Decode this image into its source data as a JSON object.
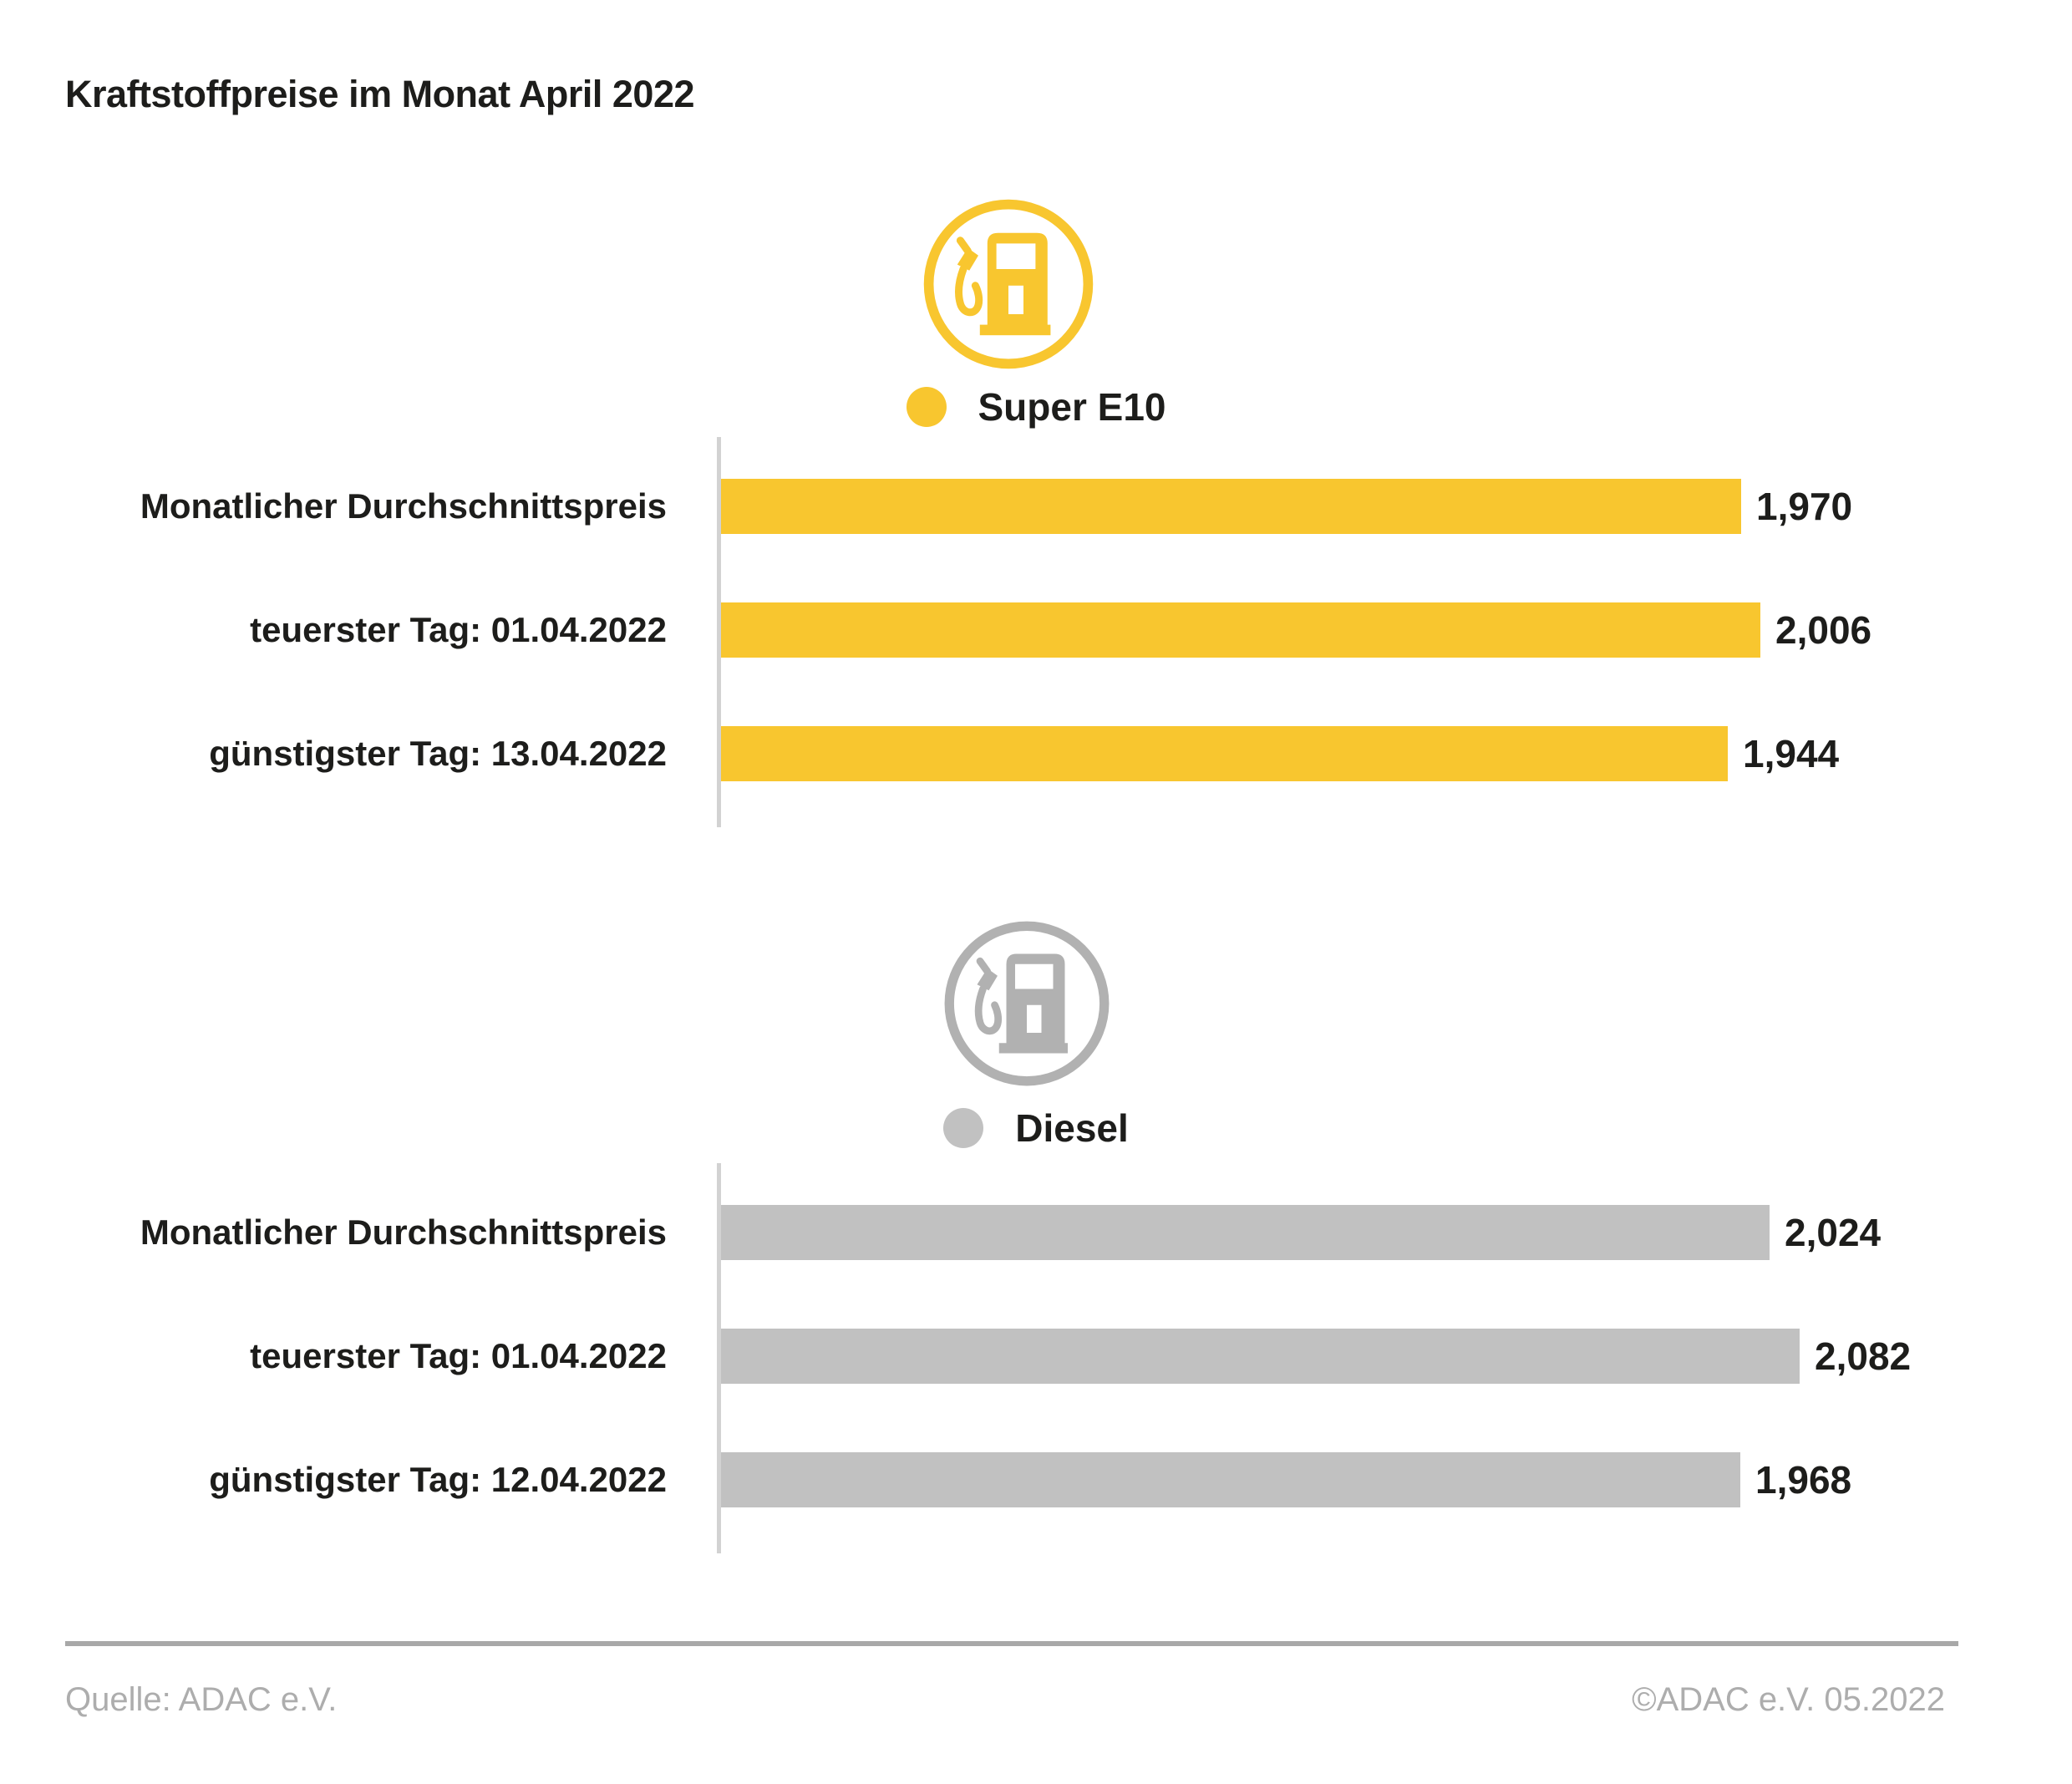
{
  "page": {
    "title": "Kraftstoffpreise im Monat April 2022"
  },
  "colors": {
    "super_e10": "#F8C62F",
    "diesel_bar": "#C1C1C1",
    "diesel_icon": "#B1B1B1",
    "axis_line": "#D2D2D2",
    "heading_text": "#1D1D1B",
    "footer_text": "#ADADAD",
    "divider": "#A8A8A8"
  },
  "footer": {
    "source": "Quelle: ADAC e.V.",
    "copyright": "©ADAC e.V. 05.2022"
  },
  "chart_data": [
    {
      "type": "bar",
      "orientation": "horizontal",
      "title": "Super E10",
      "legend": {
        "label": "Super E10",
        "color": "#F8C62F",
        "icon": "fuel-pump-icon",
        "position": "top-center"
      },
      "categories": [
        "Monatlicher Durchschnittspreis",
        "teuerster Tag: 01.04.2022",
        "günstigster Tag: 13.04.2022"
      ],
      "values": [
        1.97,
        2.006,
        1.944
      ],
      "value_labels": [
        "1,970",
        "2,006",
        "1,944"
      ],
      "xlim": [
        0,
        2.45
      ],
      "grid": false
    },
    {
      "type": "bar",
      "orientation": "horizontal",
      "title": "Diesel",
      "legend": {
        "label": "Diesel",
        "color": "#C1C1C1",
        "icon": "fuel-pump-icon",
        "position": "top-center"
      },
      "categories": [
        "Monatlicher Durchschnittspreis",
        "teuerster Tag: 01.04.2022",
        "günstigster Tag: 12.04.2022"
      ],
      "values": [
        2.024,
        2.082,
        1.968
      ],
      "value_labels": [
        "2,024",
        "2,082",
        "1,968"
      ],
      "xlim": [
        0,
        2.45
      ],
      "grid": false
    }
  ]
}
